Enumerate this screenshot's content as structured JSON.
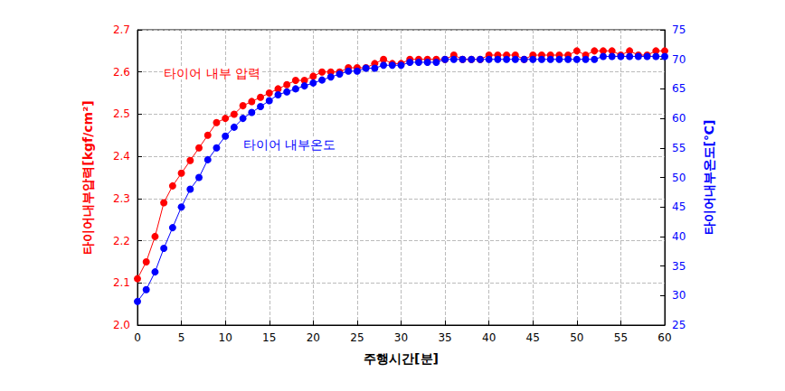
{
  "chart_data": {
    "type": "line",
    "x_label": "주행시간[분]",
    "y_label": "타이어내부압력[kgf/cm²]",
    "y2_label": "타이어내부온도[℃]",
    "x": [
      0,
      1,
      2,
      3,
      4,
      5,
      6,
      7,
      8,
      9,
      10,
      11,
      12,
      13,
      14,
      15,
      16,
      17,
      18,
      19,
      20,
      21,
      22,
      23,
      24,
      25,
      26,
      27,
      28,
      29,
      30,
      31,
      32,
      33,
      34,
      35,
      36,
      37,
      38,
      39,
      40,
      41,
      42,
      43,
      44,
      45,
      46,
      47,
      48,
      49,
      50,
      51,
      52,
      53,
      54,
      55,
      56,
      57,
      58,
      59,
      60
    ],
    "series": [
      {
        "name": "타이어 내부 압력",
        "color": "#ff0000",
        "marker": "circle",
        "values": [
          2.11,
          2.15,
          2.21,
          2.29,
          2.33,
          2.36,
          2.39,
          2.42,
          2.45,
          2.48,
          2.49,
          2.5,
          2.52,
          2.53,
          2.54,
          2.55,
          2.56,
          2.57,
          2.58,
          2.58,
          2.59,
          2.6,
          2.6,
          2.6,
          2.61,
          2.61,
          2.61,
          2.62,
          2.63,
          2.62,
          2.62,
          2.63,
          2.63,
          2.63,
          2.63,
          2.63,
          2.64,
          2.63,
          2.63,
          2.63,
          2.64,
          2.64,
          2.64,
          2.64,
          2.63,
          2.64,
          2.64,
          2.64,
          2.64,
          2.64,
          2.65,
          2.64,
          2.65,
          2.65,
          2.65,
          2.64,
          2.65,
          2.64,
          2.64,
          2.65,
          2.65
        ]
      },
      {
        "name": "타이어 내부온도",
        "color": "#0000ff",
        "marker": "circle",
        "axis": "y2",
        "values": [
          29,
          31,
          34,
          38,
          41.5,
          45,
          48,
          50,
          53,
          55,
          57,
          58.5,
          60,
          61,
          62,
          63,
          64,
          64.5,
          65,
          65.5,
          66,
          66.5,
          67,
          67.5,
          68,
          68,
          68.5,
          68.5,
          69,
          69,
          69,
          69.5,
          69.5,
          69.5,
          69.5,
          70,
          70,
          70,
          70,
          70,
          70,
          70,
          70,
          70,
          70,
          70,
          70,
          70,
          70,
          70,
          70,
          70,
          70,
          70.5,
          70.5,
          70.5,
          70.5,
          70.5,
          70.5,
          70.5,
          70.5
        ]
      }
    ],
    "xlim": [
      0,
      60
    ],
    "xticks": [
      0,
      5,
      10,
      15,
      20,
      25,
      30,
      35,
      40,
      45,
      50,
      55,
      60
    ],
    "ylim": [
      2.0,
      2.7
    ],
    "yticks": [
      {
        "value": 2,
        "label": "2.0"
      },
      2.1,
      2.2,
      2.3,
      2.4,
      2.5,
      2.6,
      2.7
    ],
    "y2lim": [
      25,
      75
    ],
    "y2ticks": [
      25,
      30,
      35,
      40,
      45,
      50,
      55,
      60,
      65,
      70,
      75
    ],
    "grid": true
  }
}
